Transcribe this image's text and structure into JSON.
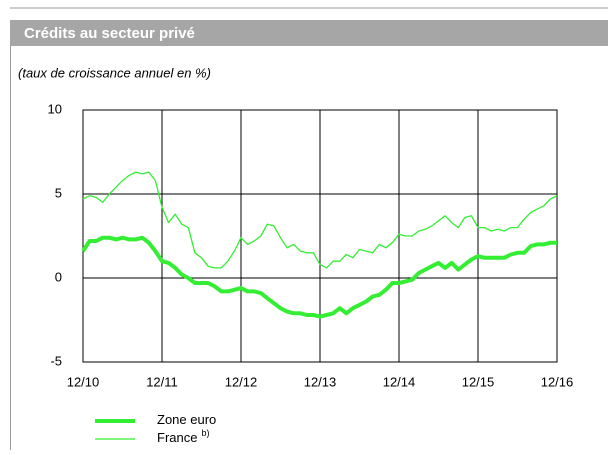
{
  "chart_data": {
    "type": "line",
    "title": "Crédits au secteur privé",
    "subtitle": "(taux de croissance annuel en %)",
    "x": [
      "12/10",
      "01/11",
      "02/11",
      "03/11",
      "04/11",
      "05/11",
      "06/11",
      "07/11",
      "08/11",
      "09/11",
      "10/11",
      "11/11",
      "12/11",
      "01/12",
      "02/12",
      "03/12",
      "04/12",
      "05/12",
      "06/12",
      "07/12",
      "08/12",
      "09/12",
      "10/12",
      "11/12",
      "12/12",
      "01/13",
      "02/13",
      "03/13",
      "04/13",
      "05/13",
      "06/13",
      "07/13",
      "08/13",
      "09/13",
      "10/13",
      "11/13",
      "12/13",
      "01/14",
      "02/14",
      "03/14",
      "04/14",
      "05/14",
      "06/14",
      "07/14",
      "08/14",
      "09/14",
      "10/14",
      "11/14",
      "12/14",
      "01/15",
      "02/15",
      "03/15",
      "04/15",
      "05/15",
      "06/15",
      "07/15",
      "08/15",
      "09/15",
      "10/15",
      "11/15",
      "12/15",
      "01/16",
      "02/16",
      "03/16",
      "04/16",
      "05/16",
      "06/16",
      "07/16",
      "08/16",
      "09/16",
      "10/16",
      "11/16",
      "12/16"
    ],
    "xticks": [
      "12/10",
      "12/11",
      "12/12",
      "12/13",
      "12/14",
      "12/15",
      "12/16"
    ],
    "ylim": [
      -5,
      10
    ],
    "yticks": [
      -5,
      0,
      5,
      10
    ],
    "grid": true,
    "series": [
      {
        "name": "Zone euro",
        "color": "#33ee33",
        "width": 4,
        "values": [
          1.6,
          2.2,
          2.2,
          2.4,
          2.4,
          2.3,
          2.4,
          2.3,
          2.3,
          2.4,
          2.1,
          1.6,
          1.0,
          0.9,
          0.6,
          0.2,
          0.0,
          -0.3,
          -0.3,
          -0.3,
          -0.5,
          -0.8,
          -0.8,
          -0.7,
          -0.6,
          -0.8,
          -0.8,
          -0.9,
          -1.2,
          -1.5,
          -1.8,
          -2.0,
          -2.1,
          -2.1,
          -2.2,
          -2.2,
          -2.3,
          -2.2,
          -2.1,
          -1.8,
          -2.1,
          -1.8,
          -1.6,
          -1.4,
          -1.1,
          -1.0,
          -0.7,
          -0.3,
          -0.3,
          -0.2,
          -0.1,
          0.3,
          0.5,
          0.7,
          0.9,
          0.6,
          0.9,
          0.5,
          0.8,
          1.1,
          1.3,
          1.2,
          1.2,
          1.2,
          1.2,
          1.4,
          1.5,
          1.5,
          1.9,
          2.0,
          2.0,
          2.1,
          2.1
        ]
      },
      {
        "name": "France",
        "footnote_mark": "b)",
        "color": "#33ee33",
        "width": 1.3,
        "values": [
          4.7,
          4.9,
          4.8,
          4.5,
          5.0,
          5.4,
          5.8,
          6.1,
          6.3,
          6.2,
          6.3,
          5.8,
          4.2,
          3.3,
          3.8,
          3.2,
          3.0,
          1.5,
          1.2,
          0.7,
          0.6,
          0.6,
          1.0,
          1.6,
          2.4,
          2.0,
          2.2,
          2.5,
          3.2,
          3.1,
          2.4,
          1.8,
          2.0,
          1.6,
          1.5,
          1.5,
          0.8,
          0.6,
          1.0,
          1.0,
          1.4,
          1.2,
          1.7,
          1.6,
          1.5,
          2.0,
          1.8,
          2.1,
          2.6,
          2.5,
          2.5,
          2.8,
          2.9,
          3.1,
          3.4,
          3.7,
          3.3,
          3.0,
          3.6,
          3.7,
          3.0,
          3.0,
          2.8,
          2.9,
          2.8,
          3.0,
          3.0,
          3.5,
          3.9,
          4.1,
          4.3,
          4.7,
          4.9
        ]
      }
    ]
  }
}
